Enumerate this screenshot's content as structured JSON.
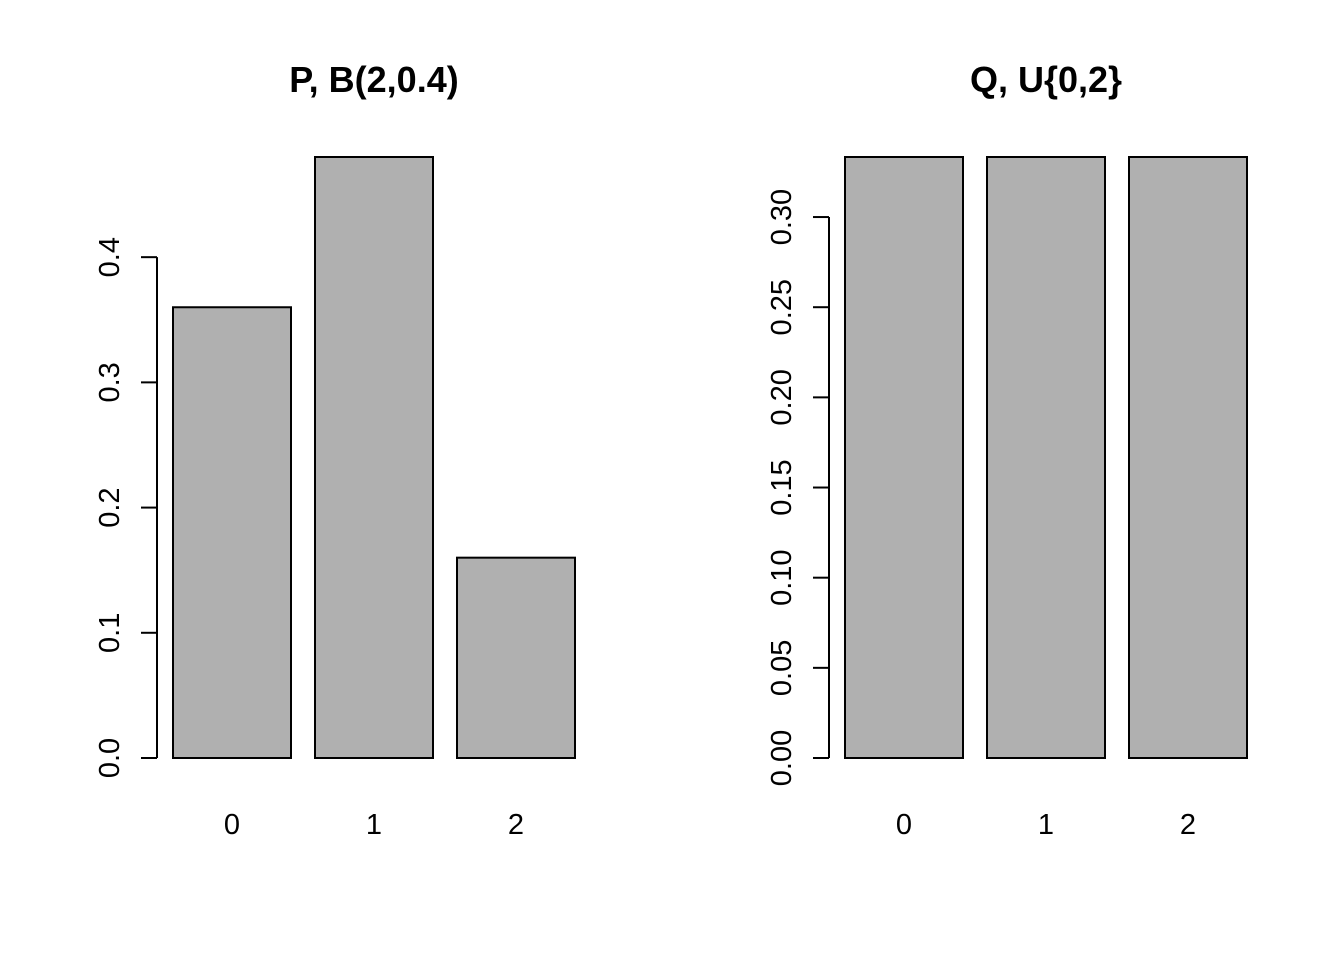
{
  "colors": {
    "bar_fill": "#b0b0b0",
    "bar_stroke": "#000000",
    "background": "#ffffff"
  },
  "chart_data": [
    {
      "type": "bar",
      "title": "P, B(2,0.4)",
      "xlabel": "",
      "ylabel": "",
      "categories": [
        "0",
        "1",
        "2"
      ],
      "values": [
        0.36,
        0.48,
        0.16
      ],
      "ylim": [
        0,
        0.48
      ],
      "yticks": [
        0.0,
        0.1,
        0.2,
        0.3,
        0.4
      ],
      "ytick_labels": [
        "0.0",
        "0.1",
        "0.2",
        "0.3",
        "0.4"
      ],
      "grid": false,
      "legend": "none"
    },
    {
      "type": "bar",
      "title": "Q, U{0,2}",
      "xlabel": "",
      "ylabel": "",
      "categories": [
        "0",
        "1",
        "2"
      ],
      "values": [
        0.3333,
        0.3333,
        0.3333
      ],
      "ylim": [
        0,
        0.3333
      ],
      "yticks": [
        0.0,
        0.05,
        0.1,
        0.15,
        0.2,
        0.25,
        0.3
      ],
      "ytick_labels": [
        "0.00",
        "0.05",
        "0.10",
        "0.15",
        "0.20",
        "0.25",
        "0.30"
      ],
      "grid": false,
      "legend": "none"
    }
  ]
}
